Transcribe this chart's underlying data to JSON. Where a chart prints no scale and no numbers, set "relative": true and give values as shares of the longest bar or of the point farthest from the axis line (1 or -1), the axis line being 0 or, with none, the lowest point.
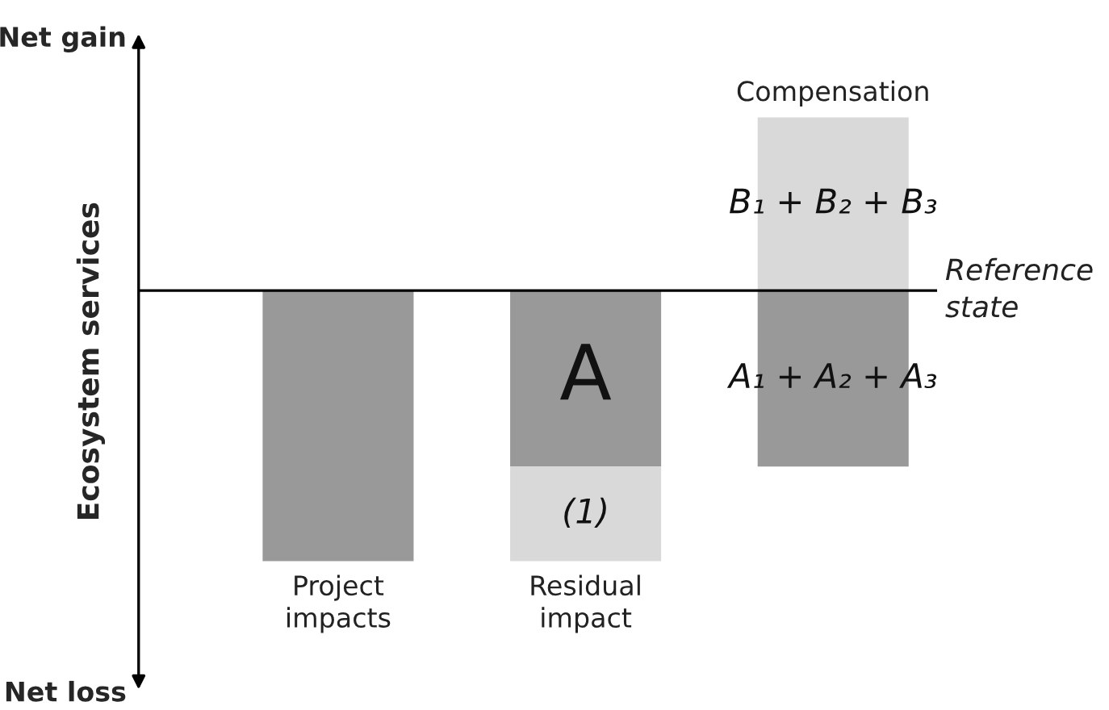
{
  "chart_data": {
    "type": "bar",
    "relative": true,
    "stacked": true,
    "categories": [
      "Project\nimpacts",
      "Residual\nimpact",
      "Compensation"
    ],
    "ylabel": "Ecosystem services",
    "series": [
      {
        "color": "#999999",
        "values": [
          -1,
          -0.65,
          -0.65
        ]
      },
      {
        "color": "#d9d9d9",
        "values": [
          null,
          -0.35,
          0.64
        ]
      }
    ],
    "ref_lines": [
      {
        "axis": "y",
        "value": 0,
        "label": "Reference\nstate",
        "color": "#000000"
      }
    ],
    "annotations": [
      "Net gain",
      "Net loss",
      "A",
      "(1)",
      "B₁ + B₂ + B₃",
      "A₁ + A₂ + A₃"
    ],
    "legend": false
  }
}
